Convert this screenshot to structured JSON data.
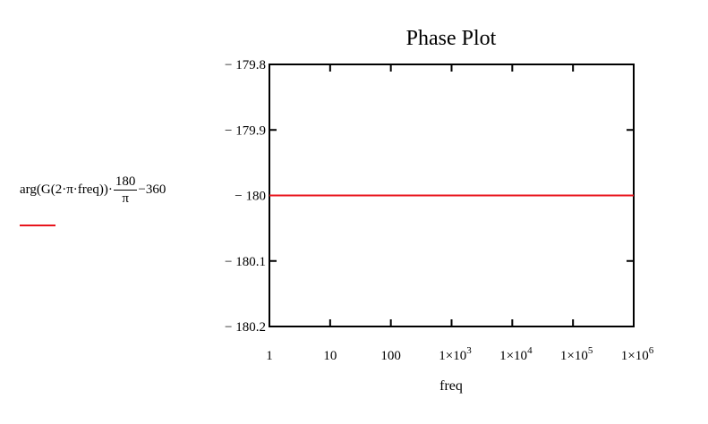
{
  "chart_data": {
    "type": "line",
    "title": "Phase Plot",
    "xlabel": "freq",
    "x_scale": "log",
    "xlim": [
      1,
      1000000
    ],
    "ylim": [
      -180.2,
      -179.8
    ],
    "x_ticks": [
      {
        "value": 1,
        "label": "1",
        "exp": ""
      },
      {
        "value": 10,
        "label": "10",
        "exp": ""
      },
      {
        "value": 100,
        "label": "100",
        "exp": ""
      },
      {
        "value": 1000,
        "label": "1×10",
        "exp": "3"
      },
      {
        "value": 10000,
        "label": "1×10",
        "exp": "4"
      },
      {
        "value": 100000,
        "label": "1×10",
        "exp": "5"
      },
      {
        "value": 1000000,
        "label": "1×10",
        "exp": "6"
      }
    ],
    "y_ticks": [
      {
        "value": -179.8,
        "label": "− 179.8"
      },
      {
        "value": -179.9,
        "label": "− 179.9"
      },
      {
        "value": -180.0,
        "label": "− 180"
      },
      {
        "value": -180.1,
        "label": "− 180.1"
      },
      {
        "value": -180.2,
        "label": "− 180.2"
      }
    ],
    "series": [
      {
        "color": "#e8141c",
        "x": [
          1,
          10,
          100,
          1000,
          10000,
          100000,
          1000000
        ],
        "y": [
          -180,
          -180,
          -180,
          -180,
          -180,
          -180,
          -180
        ]
      }
    ],
    "grid": false
  },
  "ylabel_expr": {
    "prefix": "arg(G(2·π·freq))·",
    "frac_num": "180",
    "frac_den": "π",
    "suffix": "−360"
  }
}
